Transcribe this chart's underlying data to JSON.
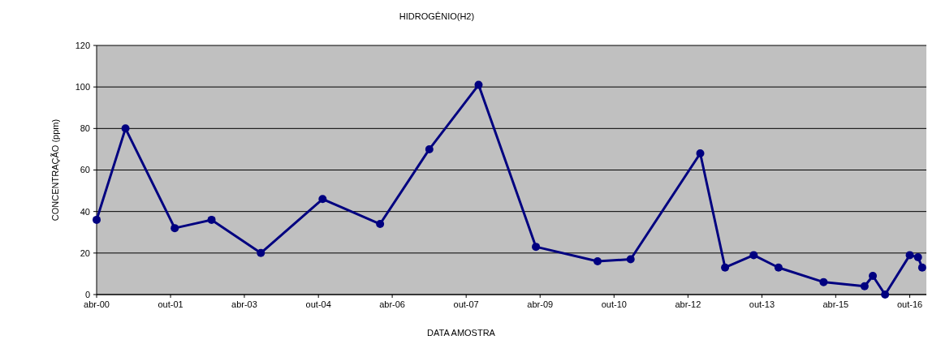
{
  "chart_data": {
    "type": "line",
    "title": "HIDROGÊNIO(H2)",
    "xlabel": "DATA AMOSTRA",
    "ylabel": "CONCENTRAÇÃO (ppm)",
    "x": [
      "2000-04",
      "2000-11",
      "2001-11",
      "2002-08",
      "2003-08",
      "2004-11",
      "2006-01",
      "2007-01",
      "2008-01",
      "2009-03",
      "2010-06",
      "2011-02",
      "2012-07",
      "2013-01",
      "2013-08",
      "2014-02",
      "2015-01",
      "2015-11",
      "2016-01",
      "2016-04",
      "2016-10",
      "2016-12",
      "2017-01"
    ],
    "series": [
      {
        "color": "#000080",
        "values": [
          36,
          80,
          32,
          36,
          20,
          46,
          34,
          70,
          101,
          23,
          16,
          17,
          68,
          13,
          19,
          13,
          6,
          4,
          9,
          0,
          19,
          18,
          13
        ]
      }
    ],
    "xlim": [
      "2000-04",
      "2017-02"
    ],
    "xticks": [
      {
        "value": "2000-04",
        "label": "abr-00"
      },
      {
        "value": "2001-10",
        "label": "out-01"
      },
      {
        "value": "2003-04",
        "label": "abr-03"
      },
      {
        "value": "2004-10",
        "label": "out-04"
      },
      {
        "value": "2006-04",
        "label": "abr-06"
      },
      {
        "value": "2007-10",
        "label": "out-07"
      },
      {
        "value": "2009-04",
        "label": "abr-09"
      },
      {
        "value": "2010-10",
        "label": "out-10"
      },
      {
        "value": "2012-04",
        "label": "abr-12"
      },
      {
        "value": "2013-10",
        "label": "out-13"
      },
      {
        "value": "2015-04",
        "label": "abr-15"
      },
      {
        "value": "2016-10",
        "label": "out-16"
      }
    ],
    "ylim": [
      0,
      120
    ],
    "yticks": [
      0,
      20,
      40,
      60,
      80,
      100,
      120
    ],
    "grid": "y",
    "marker": "circle",
    "line_style": "solid"
  }
}
